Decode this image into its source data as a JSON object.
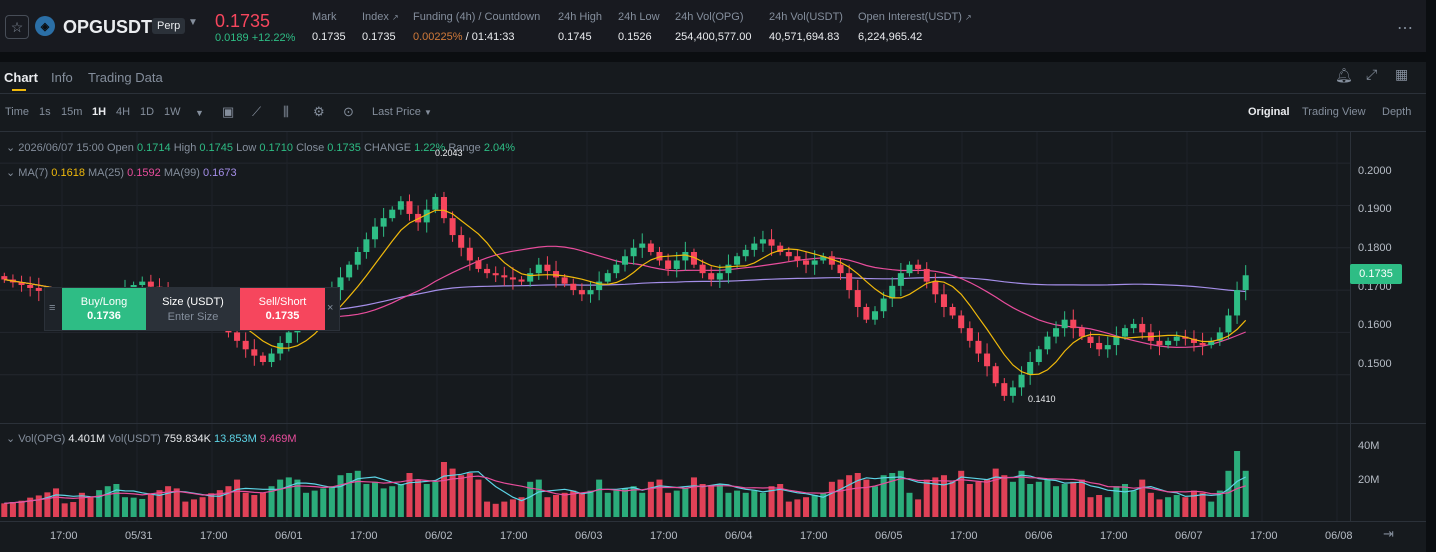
{
  "ticker": {
    "symbol": "OPGUSDT",
    "badge": "Perp",
    "last_price": "0.1735",
    "change_abs": "0.0189",
    "change_pct": "+12.22%",
    "stats": [
      {
        "label": "Mark",
        "value": "0.1735"
      },
      {
        "label": "Index",
        "value": "0.1735"
      },
      {
        "label": "Funding (4h) / Countdown",
        "value_a": "0.00225%",
        "value_b": "/ 01:41:33"
      },
      {
        "label": "24h High",
        "value": "0.1745"
      },
      {
        "label": "24h Low",
        "value": "0.1526"
      },
      {
        "label": "24h Vol(OPG)",
        "value": "254,400,577.00"
      },
      {
        "label": "24h Vol(USDT)",
        "value": "40,571,694.83"
      },
      {
        "label": "Open Interest(USDT)",
        "value": "6,224,965.42"
      }
    ]
  },
  "tabs": [
    "Chart",
    "Info",
    "Trading Data"
  ],
  "toolbar": {
    "intervals": [
      "Time",
      "1s",
      "15m",
      "1H",
      "4H",
      "1D",
      "1W"
    ],
    "active_interval": "1H",
    "price_type": "Last Price",
    "views": [
      "Original",
      "Trading View",
      "Depth"
    ],
    "active_view": "Original"
  },
  "ohlc": {
    "date": "2026/06/07 15:00",
    "open_label": "Open",
    "open": "0.1714",
    "high_label": "High",
    "high": "0.1745",
    "low_label": "Low",
    "low": "0.1710",
    "close_label": "Close",
    "close": "0.1735",
    "change_label": "CHANGE",
    "change": "1.22%",
    "range_label": "Range",
    "range": "2.04%"
  },
  "ma": {
    "ma7_label": "MA(7)",
    "ma7": "0.1618",
    "ma25_label": "MA(25)",
    "ma25": "0.1592",
    "ma99_label": "MA(99)",
    "ma99": "0.1673"
  },
  "trade_widget": {
    "buy_label": "Buy/Long",
    "buy_price": "0.1736",
    "size_label": "Size (USDT)",
    "size_placeholder": "Enter Size",
    "sell_label": "Sell/Short",
    "sell_price": "0.1735"
  },
  "price_axis": [
    "0.2000",
    "0.1900",
    "0.1800",
    "0.1700",
    "0.1600",
    "0.1500"
  ],
  "current_price_tag": "0.1735",
  "annotations": {
    "high": "0.2043",
    "low": "0.1410"
  },
  "volume": {
    "vol_label": "Vol(OPG)",
    "vol": "4.401M",
    "volusdt_label": "Vol(USDT)",
    "volusdt": "759.834K",
    "ma1": "13.853M",
    "ma2": "9.469M",
    "axis": [
      "40M",
      "20M"
    ]
  },
  "time_axis": [
    "17:00",
    "05/31",
    "17:00",
    "06/01",
    "17:00",
    "06/02",
    "17:00",
    "06/03",
    "17:00",
    "06/04",
    "17:00",
    "06/05",
    "17:00",
    "06/06",
    "17:00",
    "06/07",
    "17:00",
    "06/08"
  ],
  "colors": {
    "up": "#2ebd85",
    "down": "#f6465d",
    "accent": "#f0b90b",
    "ma7": "#f0b90b",
    "ma25": "#e84d9c",
    "ma99": "#a48ee8"
  },
  "chart_data": {
    "type": "candlestick",
    "interval": "1H",
    "ylim": [
      0.14,
      0.205
    ],
    "closes": [
      0.1725,
      0.1718,
      0.1712,
      0.1705,
      0.1698,
      0.169,
      0.168,
      0.1672,
      0.1665,
      0.165,
      0.1642,
      0.1655,
      0.167,
      0.1685,
      0.17,
      0.1712,
      0.172,
      0.1708,
      0.1695,
      0.168,
      0.167,
      0.166,
      0.165,
      0.164,
      0.1628,
      0.1615,
      0.16,
      0.158,
      0.156,
      0.1545,
      0.153,
      0.155,
      0.1575,
      0.16,
      0.162,
      0.164,
      0.166,
      0.168,
      0.17,
      0.173,
      0.176,
      0.179,
      0.182,
      0.185,
      0.187,
      0.189,
      0.191,
      0.188,
      0.186,
      0.189,
      0.192,
      0.187,
      0.183,
      0.18,
      0.177,
      0.175,
      0.174,
      0.1735,
      0.173,
      0.1725,
      0.172,
      0.174,
      0.176,
      0.1745,
      0.173,
      0.1715,
      0.17,
      0.169,
      0.17,
      0.172,
      0.174,
      0.176,
      0.178,
      0.18,
      0.181,
      0.179,
      0.177,
      0.175,
      0.177,
      0.179,
      0.176,
      0.174,
      0.1725,
      0.174,
      0.176,
      0.178,
      0.1795,
      0.181,
      0.182,
      0.1805,
      0.179,
      0.178,
      0.177,
      0.176,
      0.177,
      0.178,
      0.176,
      0.174,
      0.17,
      0.166,
      0.163,
      0.165,
      0.168,
      0.171,
      0.174,
      0.176,
      0.175,
      0.172,
      0.169,
      0.166,
      0.164,
      0.161,
      0.158,
      0.155,
      0.152,
      0.148,
      0.145,
      0.147,
      0.15,
      0.153,
      0.156,
      0.159,
      0.161,
      0.163,
      0.161,
      0.159,
      0.1575,
      0.156,
      0.157,
      0.159,
      0.161,
      0.162,
      0.16,
      0.158,
      0.157,
      0.158,
      0.159,
      0.1585,
      0.1575,
      0.157,
      0.158,
      0.16,
      0.164,
      0.17,
      0.1735
    ]
  }
}
